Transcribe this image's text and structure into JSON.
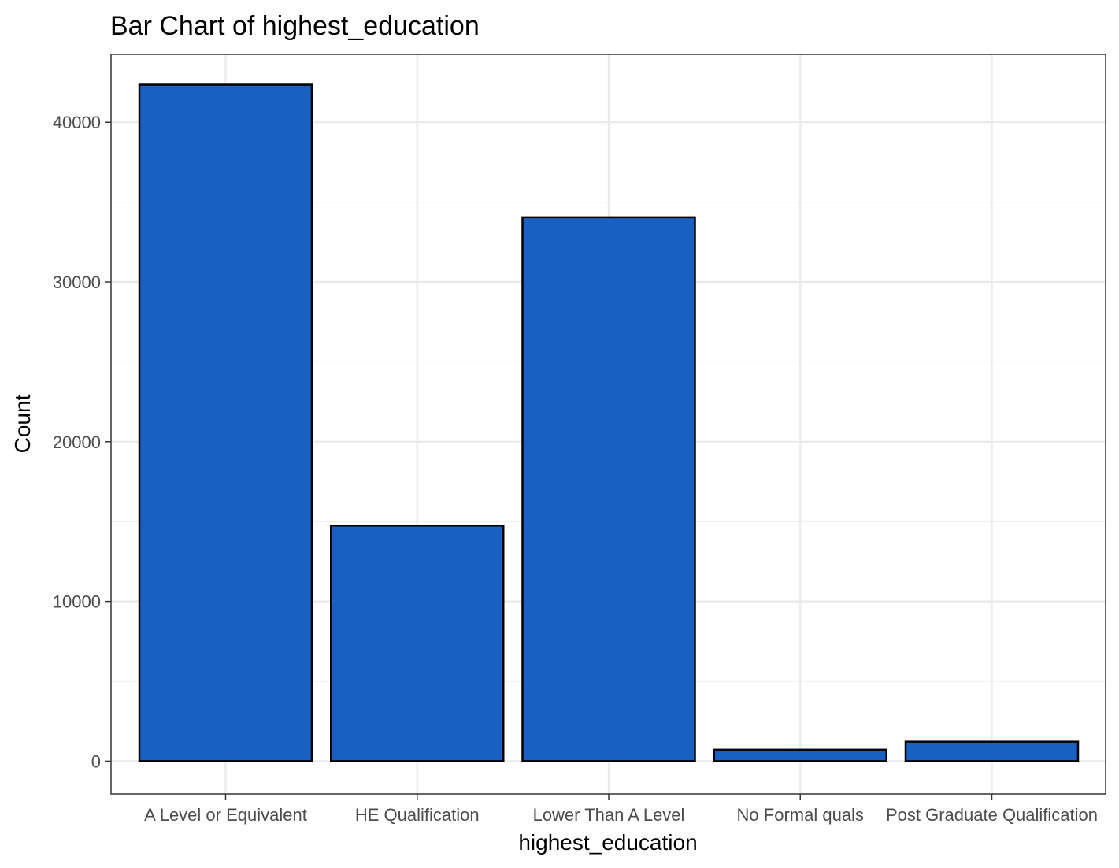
{
  "chart_data": {
    "type": "bar",
    "title": "Bar Chart of highest_education",
    "xlabel": "highest_education",
    "ylabel": "Count",
    "categories": [
      "A Level or Equivalent",
      "HE Qualification",
      "Lower Than A Level",
      "No Formal quals",
      "Post Graduate Qualification"
    ],
    "values": [
      42350,
      14750,
      34050,
      720,
      1220
    ],
    "ylim": [
      -2050,
      44250
    ],
    "yticks": [
      0,
      10000,
      20000,
      30000,
      40000
    ],
    "ytick_labels": [
      "0",
      "10000",
      "20000",
      "30000",
      "40000"
    ],
    "grid": true,
    "bar_color": "#1860C2",
    "bar_edge_color": "#000000",
    "grid_color": "#EBEBEB",
    "panel_border_color": "#333333"
  }
}
